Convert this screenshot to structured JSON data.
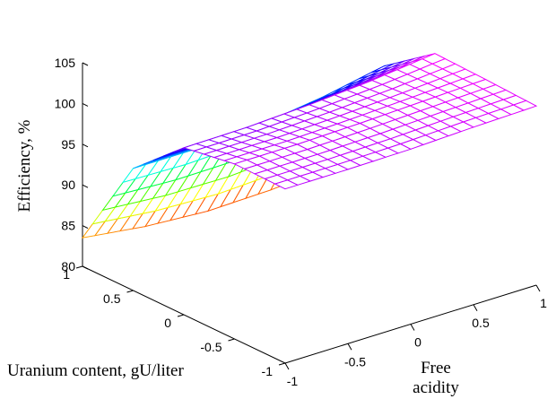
{
  "chart_data": {
    "type": "surface",
    "title": "",
    "xlabel_line1": "Free",
    "xlabel_line2": "acidity",
    "ylabel": "Uranium content, gU/liter",
    "zlabel": "Efficiency, %",
    "x_ticks": [
      "-1",
      "-0.5",
      "0",
      "0.5",
      "1"
    ],
    "y_ticks": [
      "-1",
      "-0.5",
      "0",
      "0.5",
      "1"
    ],
    "z_ticks": [
      "80",
      "85",
      "90",
      "95",
      "100",
      "105"
    ],
    "xlim": [
      -1,
      1
    ],
    "ylim": [
      -1,
      1
    ],
    "zlim": [
      80,
      105
    ],
    "x": [
      -1,
      -0.5,
      0,
      0.5,
      1
    ],
    "y": [
      -1,
      -0.5,
      0,
      0.5,
      1
    ],
    "z": [
      [
        101.4,
        101.4,
        101.5,
        101.8,
        102.0
      ],
      [
        101.5,
        101.5,
        101.7,
        102.0,
        102.3
      ],
      [
        100.5,
        100.6,
        101.0,
        101.6,
        102.5
      ],
      [
        95.0,
        95.0,
        95.5,
        96.5,
        98.0
      ],
      [
        83.5,
        82.5,
        82.0,
        82.2,
        82.8
      ]
    ],
    "colormap": [
      "#ff0000",
      "#ffff00",
      "#00ff00",
      "#00ffff",
      "#0000ff",
      "#ff00ff"
    ],
    "grid": false
  }
}
